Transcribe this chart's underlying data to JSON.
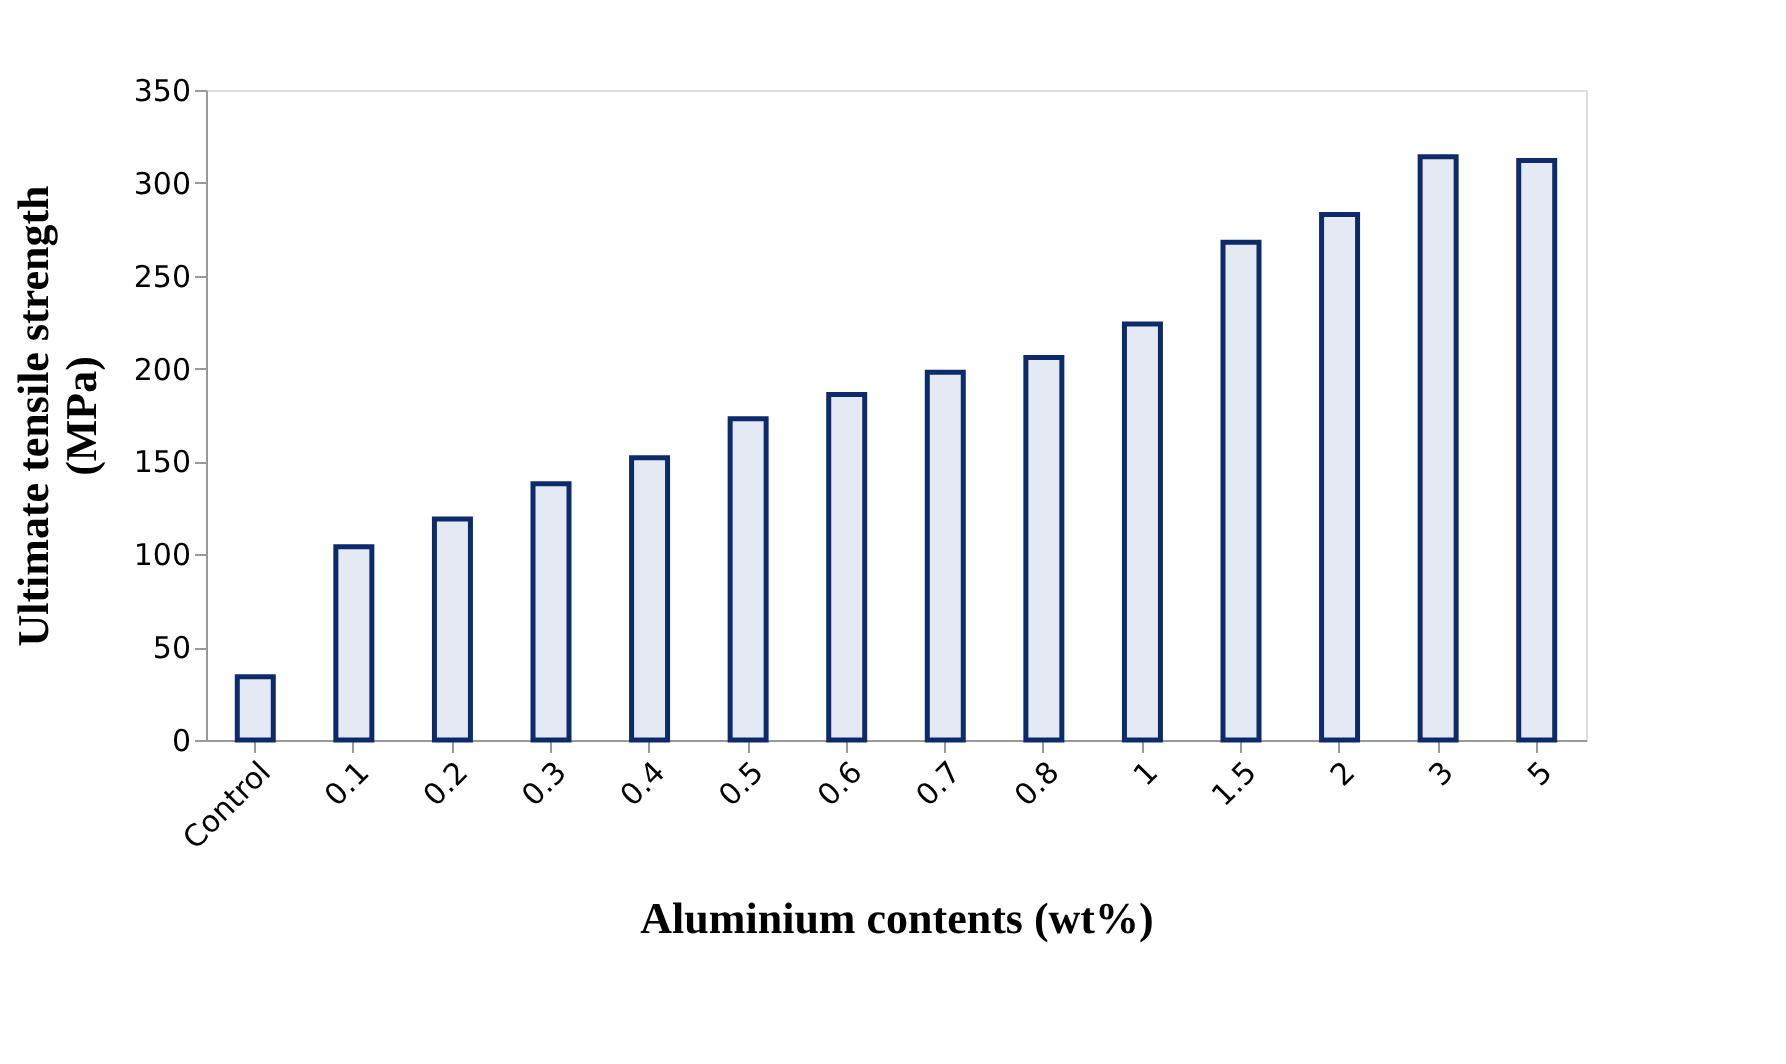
{
  "chart_data": {
    "type": "bar",
    "xlabel": "Aluminium contents (wt%)",
    "ylabel": "Ultimate tensile strength\n(MPa)",
    "categories": [
      "Control",
      "0.1",
      "0.2",
      "0.3",
      "0.4",
      "0.5",
      "0.6",
      "0.7",
      "0.8",
      "1",
      "1.5",
      "2",
      "3",
      "5"
    ],
    "values": [
      34,
      104,
      119,
      138,
      152,
      173,
      186,
      198,
      206,
      224,
      268,
      283,
      314,
      312
    ],
    "color": "#0d2a6b",
    "ylim": [
      0,
      350
    ],
    "yticks": [
      0,
      50,
      100,
      150,
      200,
      250,
      300,
      350
    ],
    "grid": false
  }
}
